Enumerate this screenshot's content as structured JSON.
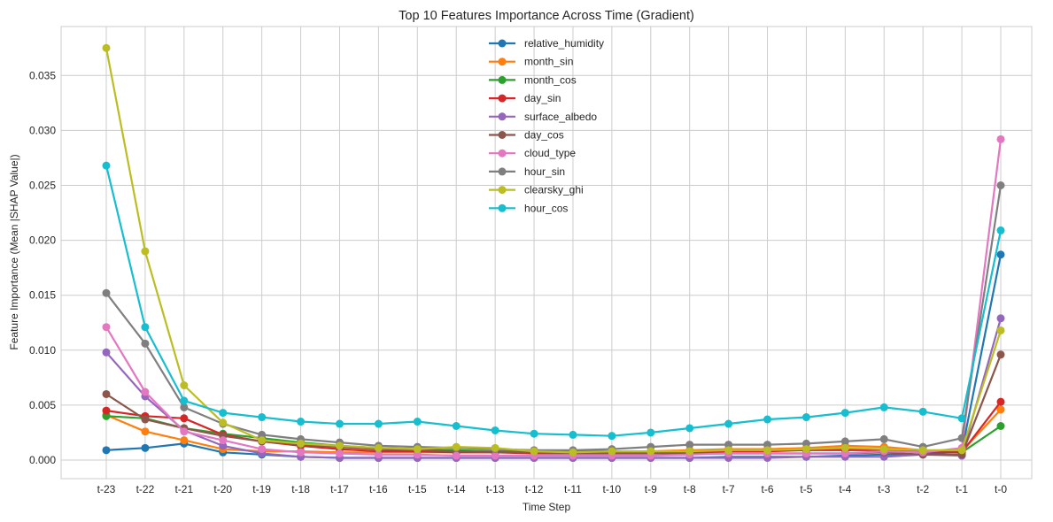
{
  "chart_data": {
    "type": "line",
    "title": "Top 10 Features Importance Across Time (Gradient)",
    "xlabel": "Time Step",
    "ylabel": "Feature Importance (Mean |SHAP Value|)",
    "ylim": [
      -0.0018,
      0.039
    ],
    "yticks": [
      0.0,
      0.005,
      0.01,
      0.015,
      0.02,
      0.025,
      0.03,
      0.035
    ],
    "ytick_labels": [
      "0.000",
      "0.005",
      "0.010",
      "0.015",
      "0.020",
      "0.025",
      "0.030",
      "0.035"
    ],
    "grid": true,
    "legend_position": "upper center",
    "categories": [
      "t-23",
      "t-22",
      "t-21",
      "t-20",
      "t-19",
      "t-18",
      "t-17",
      "t-16",
      "t-15",
      "t-14",
      "t-13",
      "t-12",
      "t-11",
      "t-10",
      "t-9",
      "t-8",
      "t-7",
      "t-6",
      "t-5",
      "t-4",
      "t-3",
      "t-2",
      "t-1",
      "t-0"
    ],
    "series": [
      {
        "name": "relative_humidity",
        "color": "#1f77b4",
        "values": [
          0.0009,
          0.0011,
          0.0015,
          0.0007,
          0.0005,
          0.0003,
          0.0002,
          0.0002,
          0.0002,
          0.0002,
          0.0002,
          0.0002,
          0.0002,
          0.0002,
          0.0002,
          0.0002,
          0.0003,
          0.0003,
          0.0003,
          0.0004,
          0.0005,
          0.0005,
          0.0008,
          0.0187
        ]
      },
      {
        "name": "month_sin",
        "color": "#ff7f0e",
        "values": [
          0.0041,
          0.0026,
          0.0018,
          0.001,
          0.0008,
          0.0008,
          0.0007,
          0.0007,
          0.0007,
          0.0007,
          0.0007,
          0.0007,
          0.0007,
          0.0008,
          0.0008,
          0.0009,
          0.001,
          0.001,
          0.0011,
          0.0013,
          0.0012,
          0.0009,
          0.0008,
          0.0046
        ]
      },
      {
        "name": "month_cos",
        "color": "#2ca02c",
        "values": [
          0.004,
          0.0038,
          0.0029,
          0.0024,
          0.002,
          0.0016,
          0.0013,
          0.0011,
          0.001,
          0.0009,
          0.0008,
          0.0008,
          0.0008,
          0.0008,
          0.0008,
          0.0008,
          0.0008,
          0.0009,
          0.0009,
          0.001,
          0.001,
          0.0008,
          0.0007,
          0.0031
        ]
      },
      {
        "name": "day_sin",
        "color": "#d62728",
        "values": [
          0.0045,
          0.004,
          0.0038,
          0.0023,
          0.0017,
          0.0013,
          0.001,
          0.0008,
          0.0008,
          0.0007,
          0.0007,
          0.0006,
          0.0006,
          0.0006,
          0.0006,
          0.0007,
          0.0008,
          0.0008,
          0.0009,
          0.0009,
          0.0009,
          0.0007,
          0.0007,
          0.0053
        ]
      },
      {
        "name": "surface_albedo",
        "color": "#9467bd",
        "values": [
          0.0098,
          0.0058,
          0.0027,
          0.0013,
          0.0006,
          0.0003,
          0.0002,
          0.0002,
          0.0002,
          0.0002,
          0.0002,
          0.0002,
          0.0002,
          0.0002,
          0.0002,
          0.0002,
          0.0002,
          0.0002,
          0.0003,
          0.0003,
          0.0003,
          0.0005,
          0.0004,
          0.0129
        ]
      },
      {
        "name": "day_cos",
        "color": "#8c564b",
        "values": [
          0.006,
          0.0037,
          0.0029,
          0.0022,
          0.0017,
          0.0014,
          0.0012,
          0.001,
          0.0009,
          0.0008,
          0.0007,
          0.0007,
          0.0006,
          0.0006,
          0.0006,
          0.0006,
          0.0006,
          0.0006,
          0.0006,
          0.0006,
          0.0007,
          0.0005,
          0.0005,
          0.0096
        ]
      },
      {
        "name": "cloud_type",
        "color": "#e377c2",
        "values": [
          0.0121,
          0.0062,
          0.0026,
          0.0018,
          0.001,
          0.0007,
          0.0006,
          0.0005,
          0.0005,
          0.0004,
          0.0004,
          0.0004,
          0.0004,
          0.0004,
          0.0004,
          0.0005,
          0.0006,
          0.0006,
          0.0006,
          0.0006,
          0.0008,
          0.0007,
          0.0011,
          0.0292
        ]
      },
      {
        "name": "hour_sin",
        "color": "#7f7f7f",
        "values": [
          0.0152,
          0.0106,
          0.0048,
          0.0033,
          0.0023,
          0.0019,
          0.0016,
          0.0013,
          0.0012,
          0.0011,
          0.001,
          0.0009,
          0.0009,
          0.001,
          0.0012,
          0.0014,
          0.0014,
          0.0014,
          0.0015,
          0.0017,
          0.0019,
          0.0012,
          0.002,
          0.025
        ]
      },
      {
        "name": "clearsky_ghi",
        "color": "#bcbd22",
        "values": [
          0.0375,
          0.019,
          0.0068,
          0.0034,
          0.0018,
          0.0015,
          0.0013,
          0.0011,
          0.001,
          0.0012,
          0.0011,
          0.0008,
          0.0007,
          0.0008,
          0.0008,
          0.0008,
          0.0009,
          0.0009,
          0.001,
          0.0011,
          0.001,
          0.0009,
          0.0009,
          0.0118
        ]
      },
      {
        "name": "hour_cos",
        "color": "#17becf",
        "values": [
          0.0268,
          0.0121,
          0.0054,
          0.0043,
          0.0039,
          0.0035,
          0.0033,
          0.0033,
          0.0035,
          0.0031,
          0.0027,
          0.0024,
          0.0023,
          0.0022,
          0.0025,
          0.0029,
          0.0033,
          0.0037,
          0.0039,
          0.0043,
          0.0048,
          0.0044,
          0.0038,
          0.0209
        ]
      }
    ]
  }
}
